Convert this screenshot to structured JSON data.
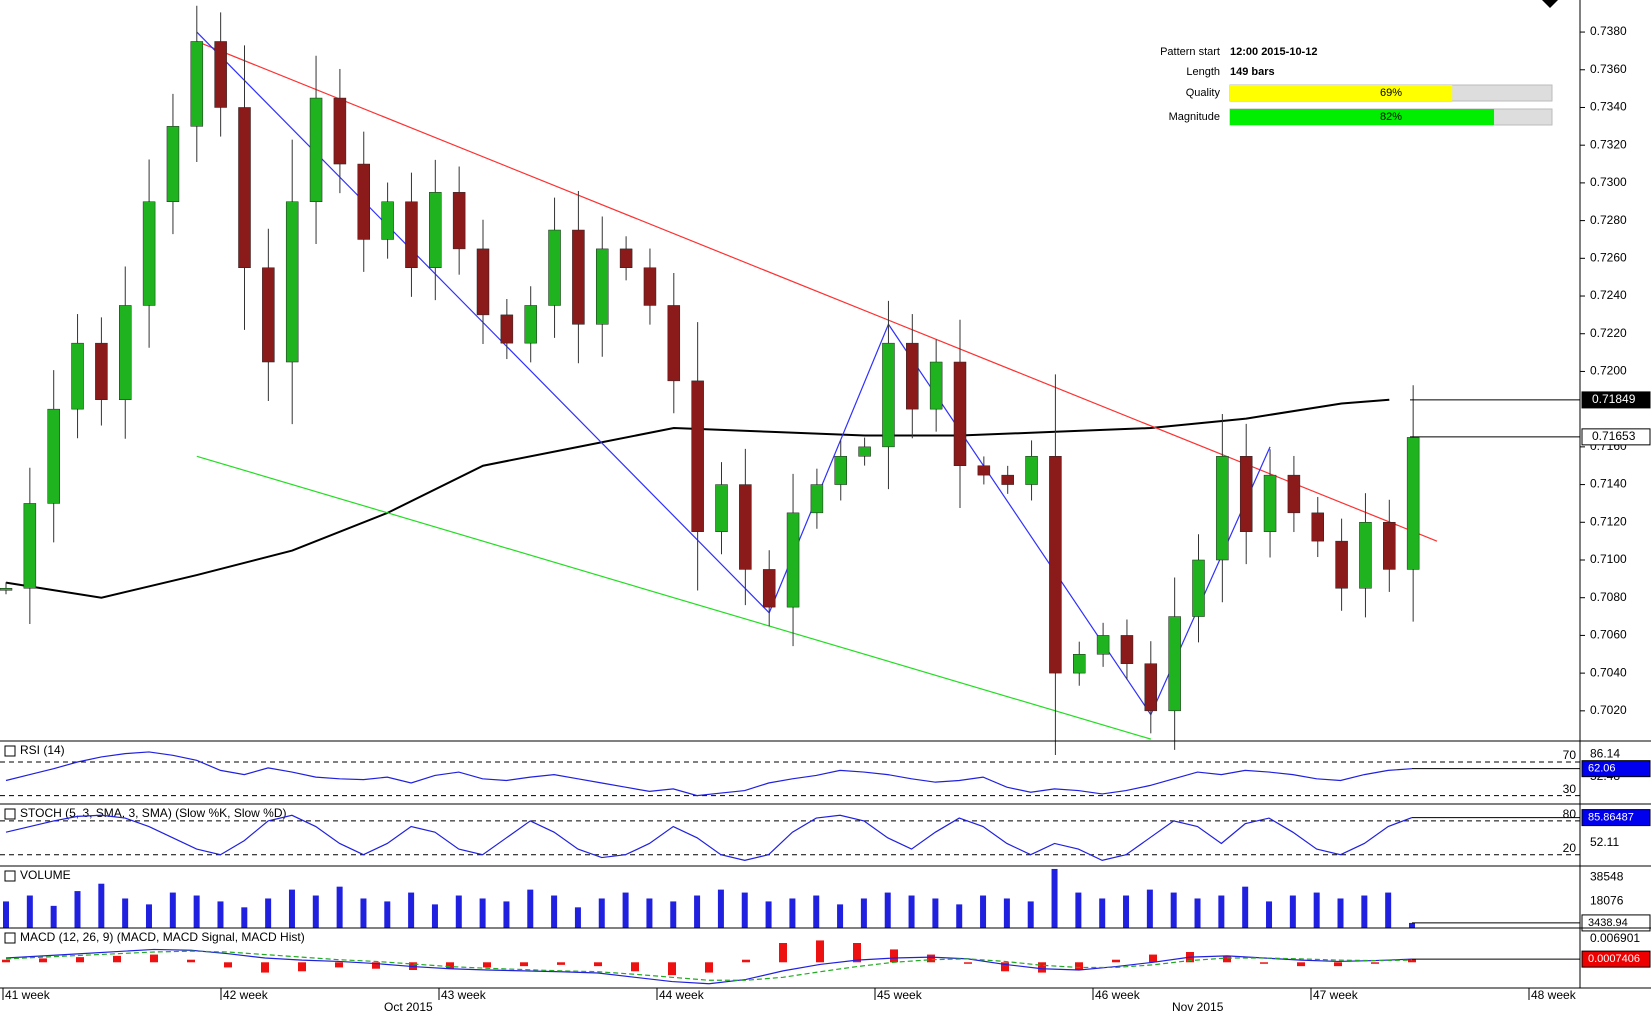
{
  "chart_data": {
    "type": "candlestick",
    "closes": [
      0.7085,
      0.713,
      0.718,
      0.7215,
      0.7185,
      0.7235,
      0.729,
      0.733,
      0.7375,
      0.734,
      0.7255,
      0.7205,
      0.729,
      0.7345,
      0.731,
      0.727,
      0.729,
      0.7255,
      0.7295,
      0.7265,
      0.723,
      0.7215,
      0.7235,
      0.7275,
      0.7225,
      0.7265,
      0.7255,
      0.7235,
      0.7195,
      0.7115,
      0.714,
      0.7095,
      0.7075,
      0.7125,
      0.714,
      0.7155,
      0.716,
      0.7215,
      0.718,
      0.7205,
      0.715,
      0.7145,
      0.714,
      0.7155,
      0.704,
      0.705,
      0.706,
      0.7045,
      0.702,
      0.707,
      0.71,
      0.7155,
      0.7115,
      0.7145,
      0.7125,
      0.711,
      0.7085,
      0.712,
      0.7095,
      0.7165
    ],
    "up_color": "#1fb31f",
    "down_color": "#8b1a1a",
    "ylim": [
      0.7004,
      0.7397
    ],
    "yticks": [
      {
        "value": 0.738,
        "label": "0.7380"
      },
      {
        "value": 0.736,
        "label": "0.7360"
      },
      {
        "value": 0.734,
        "label": "0.7340"
      },
      {
        "value": 0.732,
        "label": "0.7320"
      },
      {
        "value": 0.73,
        "label": "0.7300"
      },
      {
        "value": 0.728,
        "label": "0.7280"
      },
      {
        "value": 0.726,
        "label": "0.7260"
      },
      {
        "value": 0.724,
        "label": "0.7240"
      },
      {
        "value": 0.722,
        "label": "0.7220"
      },
      {
        "value": 0.72,
        "label": "0.7200"
      },
      {
        "value": 0.716,
        "label": "0.7160"
      },
      {
        "value": 0.714,
        "label": "0.7140"
      },
      {
        "value": 0.712,
        "label": "0.7120"
      },
      {
        "value": 0.71,
        "label": "0.7100"
      },
      {
        "value": 0.708,
        "label": "0.7080"
      },
      {
        "value": 0.706,
        "label": "0.7060"
      },
      {
        "value": 0.704,
        "label": "0.7040"
      },
      {
        "value": 0.702,
        "label": "0.7020"
      }
    ],
    "price_lines": [
      {
        "value": 0.71849,
        "label": "0.71849",
        "color": "#000000"
      },
      {
        "value": 0.71653,
        "label": "0.71653",
        "color": "#ffffff"
      }
    ],
    "lines": [
      {
        "color": "#000000",
        "points": [
          [
            0,
            0.7088
          ],
          [
            4,
            0.708
          ],
          [
            8,
            0.7092
          ],
          [
            12,
            0.7105
          ],
          [
            16,
            0.7125
          ],
          [
            20,
            0.715
          ],
          [
            24,
            0.716
          ],
          [
            28,
            0.717
          ],
          [
            32,
            0.7168
          ],
          [
            36,
            0.7166
          ],
          [
            40,
            0.7166
          ],
          [
            44,
            0.7168
          ],
          [
            48,
            0.717
          ],
          [
            52,
            0.7175
          ],
          [
            56,
            0.7183
          ],
          [
            58,
            0.7185
          ]
        ]
      },
      {
        "color": "#ff3030",
        "points": [
          [
            8,
            0.7375
          ],
          [
            60,
            0.711
          ]
        ]
      },
      {
        "color": "#22dd22",
        "points": [
          [
            8,
            0.7155
          ],
          [
            48,
            0.7005
          ]
        ]
      },
      {
        "color": "#3030ff",
        "points": [
          [
            8,
            0.738
          ],
          [
            32,
            0.7072
          ],
          [
            37,
            0.7225
          ],
          [
            48,
            0.7018
          ],
          [
            53,
            0.716
          ]
        ]
      }
    ],
    "pattern": {
      "start_label": "Pattern start",
      "start": "12:00 2015-10-12",
      "length_label": "Length",
      "length": "149 bars",
      "quality_label": "Quality",
      "quality": 69,
      "quality_text": "69%",
      "magnitude_label": "Magnitude",
      "magnitude": 82,
      "magnitude_text": "82%"
    },
    "x_labels": [
      "41 week",
      "42 week",
      "43 week",
      "44 week",
      "45 week",
      "46 week",
      "47 week",
      "48 week"
    ],
    "months": [
      "Oct 2015",
      "Nov 2015"
    ],
    "rsi": {
      "title": "RSI (14)",
      "ylim": [
        20,
        95
      ],
      "yticks": [
        86.14,
        52.48
      ],
      "levels": [
        70,
        30
      ],
      "current": 62.06,
      "values": [
        48,
        55,
        62,
        70,
        76,
        80,
        82,
        78,
        72,
        60,
        55,
        63,
        58,
        52,
        50,
        49,
        52,
        45,
        54,
        58,
        50,
        48,
        52,
        55,
        50,
        45,
        40,
        35,
        38,
        30,
        33,
        36,
        45,
        50,
        54,
        60,
        58,
        55,
        50,
        46,
        48,
        52,
        40,
        34,
        38,
        36,
        32,
        36,
        42,
        50,
        58,
        55,
        60,
        58,
        55,
        50,
        48,
        55,
        60,
        62.06
      ]
    },
    "stoch": {
      "title": "STOCH (5, 3, SMA, 3, SMA) (Slow %K, Slow %D)",
      "ylim": [
        0,
        110
      ],
      "yticks": [
        52.11
      ],
      "levels": [
        80,
        20
      ],
      "current": 85.86487,
      "k": [
        60,
        70,
        80,
        88,
        90,
        85,
        70,
        50,
        30,
        20,
        45,
        80,
        90,
        70,
        40,
        20,
        40,
        70,
        60,
        30,
        20,
        50,
        80,
        60,
        30,
        15,
        20,
        40,
        70,
        50,
        20,
        10,
        20,
        60,
        85,
        90,
        80,
        50,
        30,
        60,
        85,
        70,
        40,
        20,
        40,
        30,
        10,
        20,
        50,
        80,
        70,
        40,
        75,
        85,
        60,
        30,
        20,
        40,
        70,
        86
      ]
    },
    "volume": {
      "title": "VOLUME",
      "ylim": [
        0,
        42000
      ],
      "yticks": [
        38548,
        18076
      ],
      "current": 3438.94,
      "color": "#2020e0",
      "values": [
        18000,
        22000,
        15000,
        25000,
        30000,
        20000,
        16000,
        24000,
        22000,
        18000,
        14000,
        20000,
        26000,
        22000,
        28000,
        20000,
        18000,
        24000,
        16000,
        22000,
        20000,
        18000,
        26000,
        22000,
        14000,
        20000,
        24000,
        20000,
        18000,
        22000,
        26000,
        24000,
        18000,
        20000,
        22000,
        16000,
        20000,
        24000,
        22000,
        20000,
        16000,
        22000,
        20000,
        18000,
        40000,
        24000,
        20000,
        22000,
        26000,
        24000,
        20000,
        22000,
        28000,
        18000,
        22000,
        24000,
        20000,
        22000,
        24000,
        3438.94
      ]
    },
    "macd": {
      "title": "MACD (12, 26, 9) (MACD, MACD Signal, MACD Hist)",
      "ylim": [
        -0.006,
        0.008
      ],
      "yticks": [
        0.006901
      ],
      "current": 0.0007406,
      "macd": [
        0.001,
        0.0015,
        0.002,
        0.0025,
        0.003,
        0.0028,
        0.002,
        0.001,
        0.0005,
        0.0002,
        -0.0003,
        -0.001,
        -0.0015,
        -0.0018,
        -0.002,
        -0.0022,
        -0.0025,
        -0.0035,
        -0.0045,
        -0.005,
        -0.004,
        -0.002,
        -0.0005,
        0.0005,
        0.001,
        0.0012,
        0.0008,
        -0.0005,
        -0.0015,
        -0.0018,
        -0.001,
        0,
        0.0012,
        0.0015,
        0.001,
        0.0005,
        0.0002,
        0.0004,
        0.0007406
      ],
      "signal": [
        0.0008,
        0.0012,
        0.0016,
        0.002,
        0.0024,
        0.0026,
        0.0024,
        0.0018,
        0.0012,
        0.0006,
        0.0002,
        -0.0004,
        -0.001,
        -0.0014,
        -0.0017,
        -0.002,
        -0.0022,
        -0.0028,
        -0.0035,
        -0.0042,
        -0.0042,
        -0.0035,
        -0.0022,
        -0.001,
        0,
        0.0006,
        0.0008,
        0.0002,
        -0.0007,
        -0.0012,
        -0.0012,
        -0.0006,
        0.0004,
        0.001,
        0.001,
        0.0008,
        0.0005,
        0.0004,
        0.0005
      ]
    }
  }
}
